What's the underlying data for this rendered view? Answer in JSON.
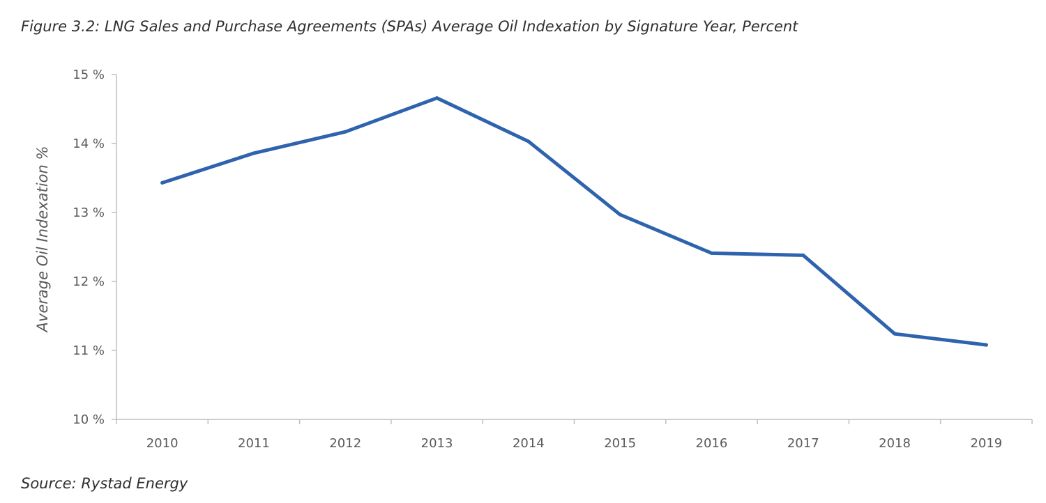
{
  "figure_title": "Figure 3.2: LNG Sales and Purchase Agreements (SPAs) Average Oil Indexation by Signature Year, Percent",
  "source": "Source: Rystad Energy",
  "chart_data": {
    "type": "line",
    "title": "Figure 3.2: LNG Sales and Purchase Agreements (SPAs) Average Oil Indexation by Signature Year, Percent",
    "xlabel": "",
    "ylabel": "Average Oil Indexation %",
    "categories": [
      "2010",
      "2011",
      "2012",
      "2013",
      "2014",
      "2015",
      "2016",
      "2017",
      "2018",
      "2019"
    ],
    "series": [
      {
        "values": [
          13.43,
          13.86,
          14.17,
          14.66,
          14.03,
          12.97,
          12.41,
          12.38,
          11.24,
          11.08
        ]
      }
    ],
    "ylim": [
      10,
      15
    ],
    "yticks": [
      10,
      11,
      12,
      13,
      14,
      15
    ],
    "ytick_labels": [
      "10 %",
      "11 %",
      "12 %",
      "13 %",
      "14 %",
      "15 %"
    ],
    "grid": false,
    "line_color": "#2e63ad",
    "axis_color": "#bfbfbf"
  }
}
